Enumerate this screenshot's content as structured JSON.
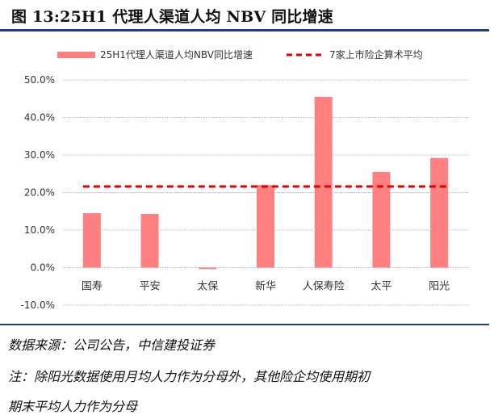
{
  "title": "图 13:25H1 代理人渠道人均 NBV 同比增速",
  "chart_data": {
    "type": "bar",
    "title": "图 13:25H1 代理人渠道人均 NBV 同比增速",
    "categories": [
      "国寿",
      "平安",
      "太保",
      "新华",
      "人保寿险",
      "太平",
      "阳光"
    ],
    "series": [
      {
        "name": "25H1代理人渠道人均NBV同比增速",
        "type": "bar",
        "color": "#ff8080",
        "values": [
          14.5,
          14.3,
          -0.4,
          22.0,
          45.5,
          25.5,
          29.2
        ]
      },
      {
        "name": "7家上市险企算术平均",
        "type": "line",
        "style": "dashed",
        "color": "#e00000",
        "value": 21.6
      }
    ],
    "ylim": [
      -10,
      50
    ],
    "yticks": [
      -10,
      0,
      10,
      20,
      30,
      40,
      50
    ],
    "ytick_labels": [
      "-10.0%",
      "0.0%",
      "10.0%",
      "20.0%",
      "30.0%",
      "40.0%",
      "50.0%"
    ],
    "xlabel": "",
    "ylabel": "",
    "grid": true,
    "legend_position": "top"
  },
  "footer": {
    "source": "数据来源：公司公告，中信建投证券",
    "note_line1": "注：除阳光数据使用月均人力作为分母外，其他险企均使用期初",
    "note_line2": "期末平均人力作为分母"
  }
}
